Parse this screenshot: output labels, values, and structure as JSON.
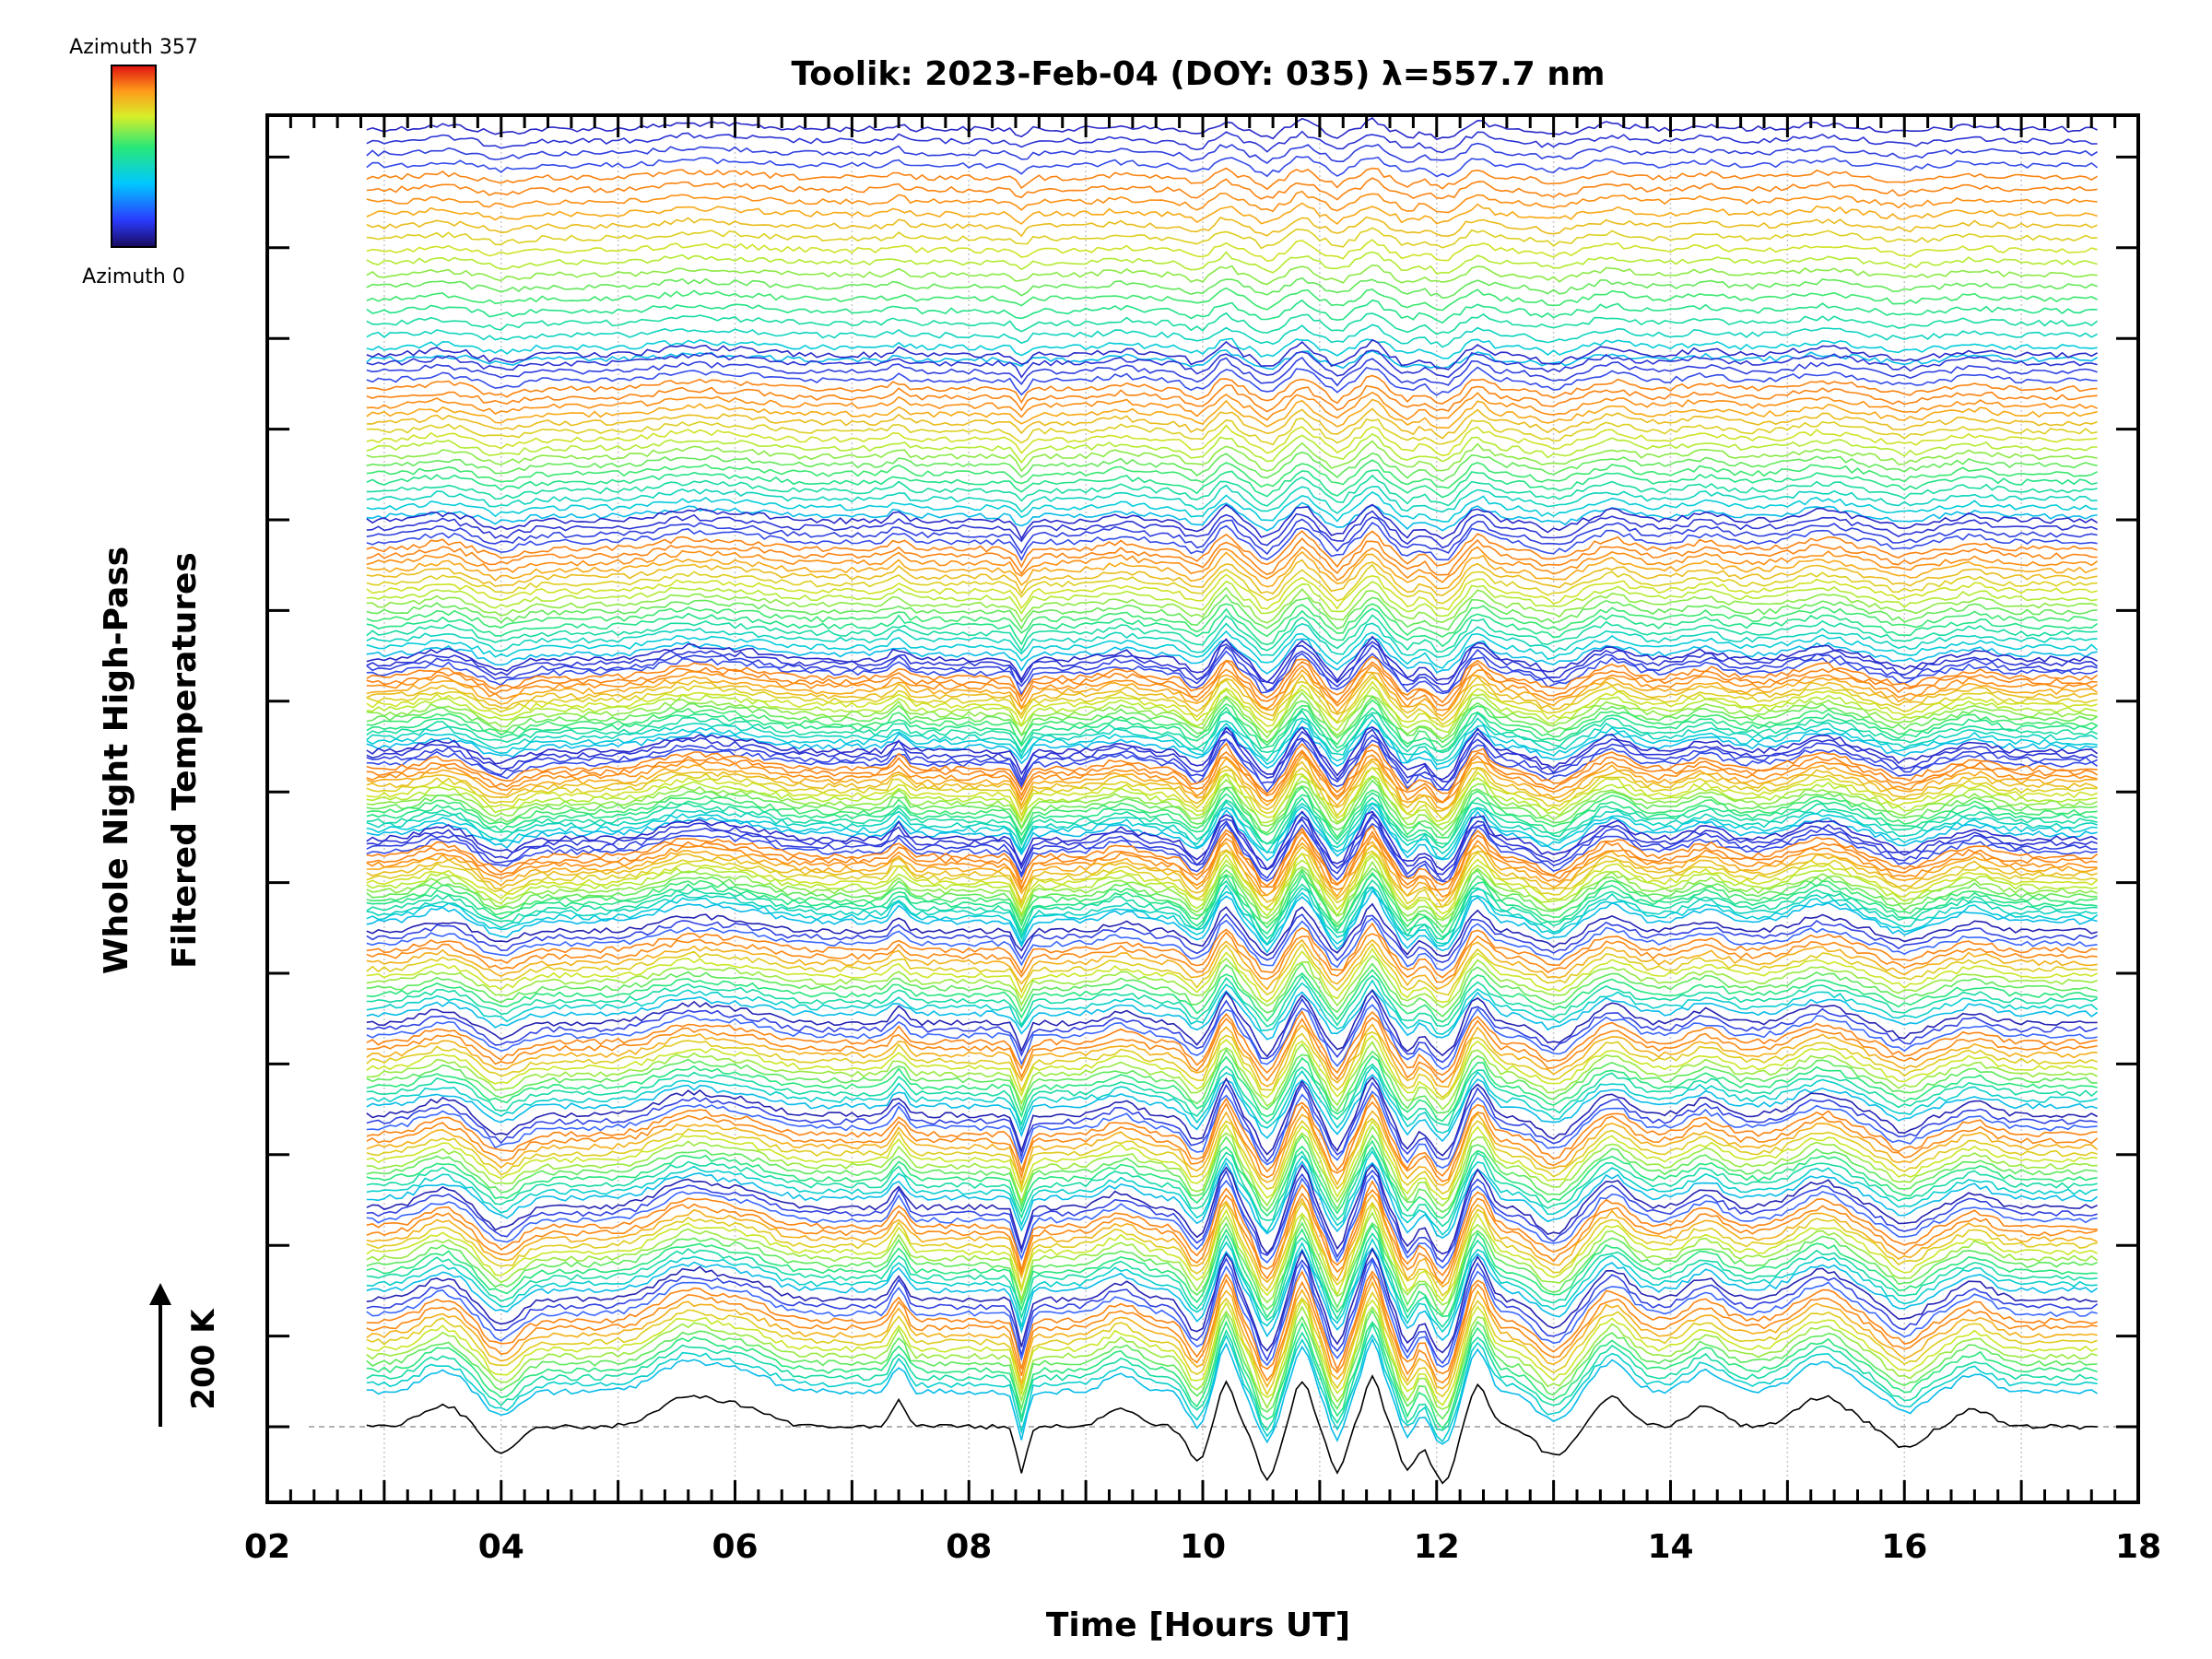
{
  "chart_data": {
    "type": "line",
    "title": "Toolik: 2023-Feb-04 (DOY: 035) λ=557.7 nm",
    "xlabel": "Time [Hours UT]",
    "ylabel_line1": "Whole Night High-Pass",
    "ylabel_line2": "Filtered Temperatures",
    "xlim": [
      2,
      18
    ],
    "x_ticks": [
      "02",
      "04",
      "06",
      "08",
      "10",
      "12",
      "14",
      "16",
      "18"
    ],
    "data_time_range": [
      2.85,
      17.65
    ],
    "scale_bar_label": "200 K",
    "colorbar": {
      "top_label": "Azimuth 357",
      "bottom_label": "Azimuth 0",
      "colormap": "rainbow"
    },
    "grid": "vertical dotted lines at each hour",
    "stacked_zones": 6,
    "traces_per_zone": 20,
    "notes_colors": {
      "axis": "#000000",
      "grid": "#c8c8c8",
      "baseline": "#999999"
    }
  }
}
